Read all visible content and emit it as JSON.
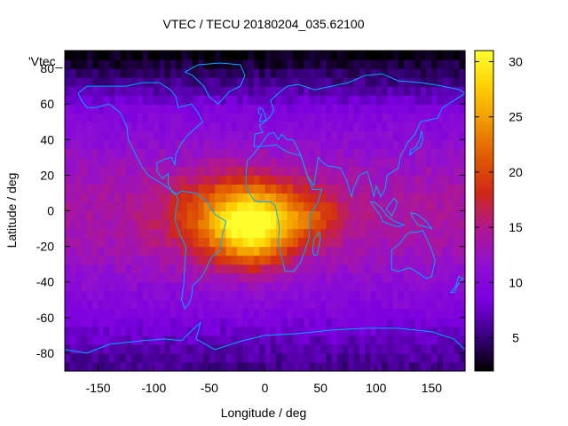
{
  "chart_data": {
    "type": "heatmap",
    "title": "VTEC / TECU 20180204_035.62100",
    "xlabel": "Longitude / deg",
    "ylabel": "Latitude / deg",
    "xlim": [
      -180,
      180
    ],
    "ylim": [
      -90,
      90
    ],
    "xticks": [
      -150,
      -100,
      -50,
      0,
      50,
      100,
      150
    ],
    "yticks": [
      -80,
      -60,
      -40,
      -20,
      0,
      20,
      40,
      60,
      80
    ],
    "colorbar": {
      "range": [
        2,
        31
      ],
      "ticks": [
        5,
        10,
        15,
        20,
        25,
        30
      ],
      "colormap": [
        "#000000",
        "#3a0080",
        "#7a00e0",
        "#9010d0",
        "#b01890",
        "#d02818",
        "#e05a00",
        "#f09800",
        "#ffd000",
        "#ffff30"
      ]
    },
    "key_label": "'Vtec_",
    "coastline_color": "#00a8ff",
    "peak": {
      "lon": -10,
      "lat": -10,
      "value": 31
    },
    "background_level": 8
  }
}
